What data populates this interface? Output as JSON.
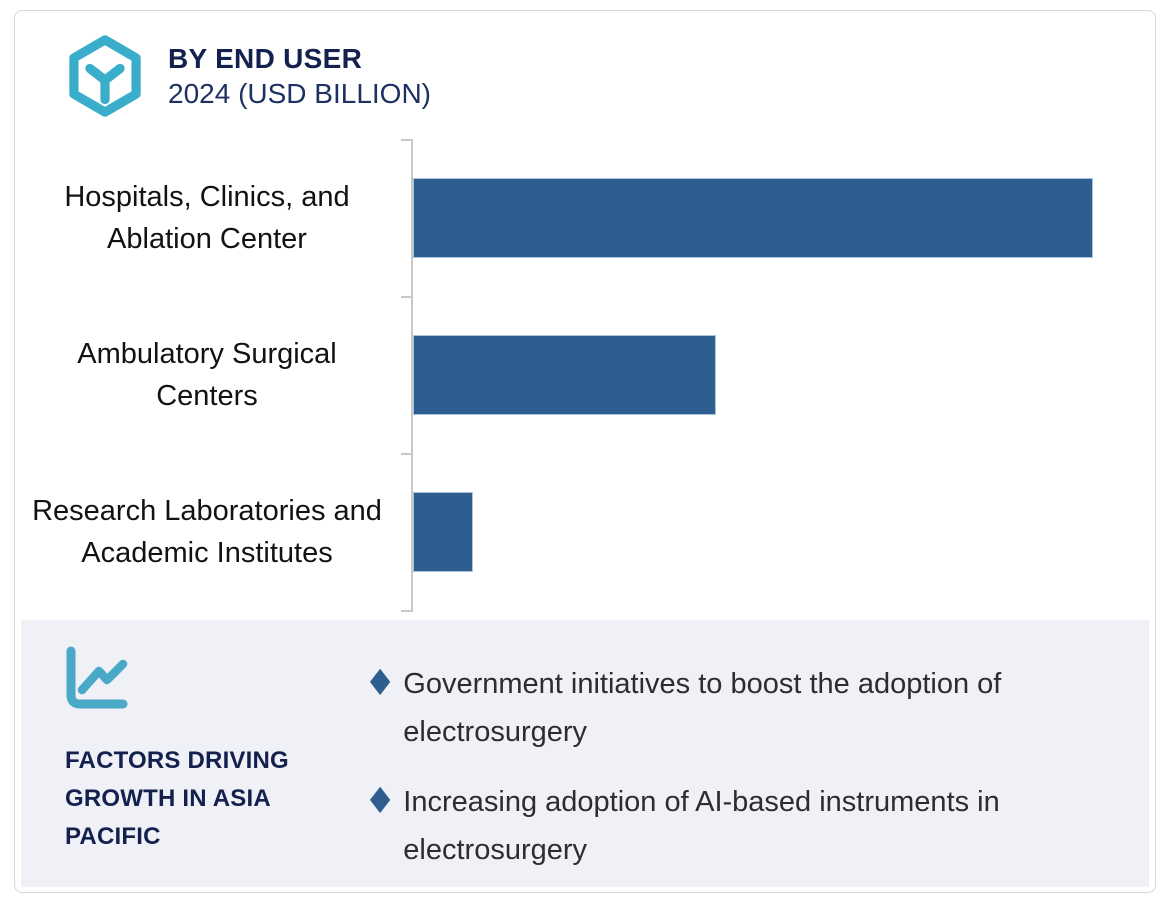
{
  "header": {
    "title": "BY END USER",
    "subtitle": "2024 (USD BILLION)"
  },
  "chart_data": {
    "type": "bar",
    "orientation": "horizontal",
    "title": "BY END USER",
    "subtitle": "2024 (USD BILLION)",
    "unit": "USD Billion",
    "year": "2024",
    "categories": [
      "Hospitals, Clinics, and Ablation Center",
      "Ambulatory Surgical Centers",
      "Research Laboratories and Academic Institutes"
    ],
    "values_relative_pct": [
      100,
      44.5,
      8.8
    ],
    "value_labels_shown": false,
    "value_axis_labeled": false,
    "gridlines": false,
    "legend": "none",
    "bar_color": "#2d5e8f",
    "axis_color": "#c8c8c8"
  },
  "factors_panel": {
    "heading": "FACTORS DRIVING GROWTH IN ASIA PACIFIC",
    "bullet_glyph": "♦",
    "bullets": [
      "Government initiatives to boost the adoption of electrosurgery",
      "Increasing adoption of AI-based instruments in electrosurgery"
    ]
  },
  "icons": {
    "logo": "hexagon-y-icon",
    "panel": "line-chart-icon"
  },
  "colors": {
    "accent_teal": "#3aadca",
    "navy": "#14204e",
    "bar_blue": "#2d5e8f",
    "panel_background": "#eff1f6",
    "frame_border": "#d6d6d6"
  }
}
